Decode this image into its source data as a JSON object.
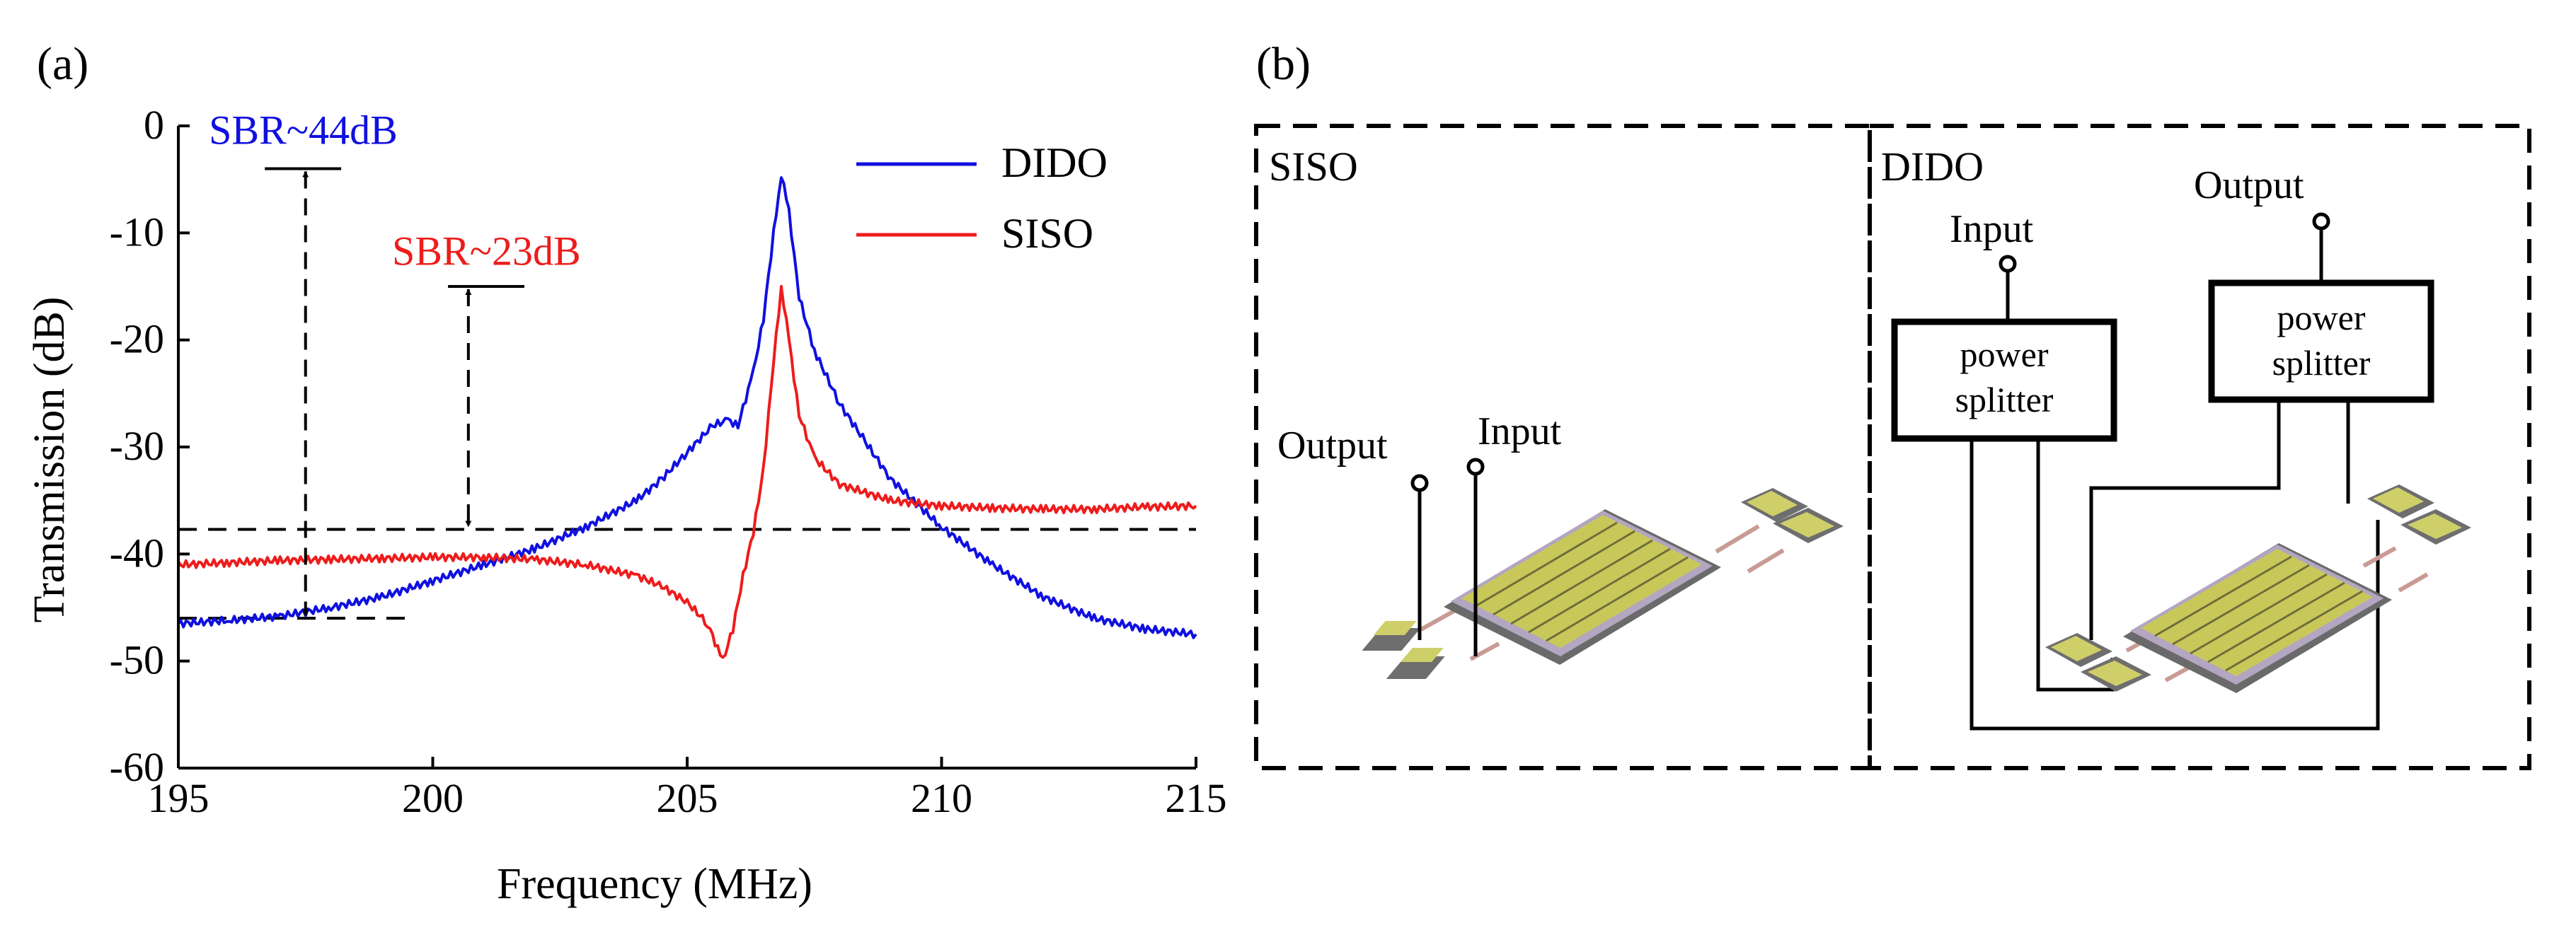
{
  "panel_a": {
    "label": "(a)",
    "annotations": {
      "sbr_dido": "SBR~44dB",
      "sbr_siso": "SBR~23dB"
    }
  },
  "panel_b": {
    "label": "(b)",
    "siso": {
      "title": "SISO",
      "output_label": "Output",
      "input_label": "Input"
    },
    "dido": {
      "title": "DIDO",
      "input_label": "Input",
      "output_label": "Output",
      "splitter_left_line1": "power",
      "splitter_left_line2": "splitter",
      "splitter_right_line1": "power",
      "splitter_right_line2": "splitter"
    }
  },
  "colors": {
    "dido": "#1010e0",
    "siso": "#ee1c1c",
    "axis": "#000000",
    "chip_pad": "#707070",
    "chip_finger": "#c8c85a",
    "chip_trace": "#c89b94"
  },
  "chart_data": {
    "type": "line",
    "title": "",
    "xlabel": "Frequency (MHz)",
    "ylabel": "Transmission (dB)",
    "xlim": [
      195,
      215
    ],
    "ylim": [
      -60,
      0
    ],
    "xticks": [
      195,
      200,
      205,
      210,
      215
    ],
    "yticks": [
      0,
      -10,
      -20,
      -30,
      -40,
      -50,
      -60
    ],
    "legend": {
      "position": "top-right",
      "entries": [
        "DIDO",
        "SISO"
      ]
    },
    "reference_levels": {
      "dido_bottom": -46,
      "siso_baseline": -37.7,
      "dido_peak": -4,
      "siso_peak": -15
    },
    "series": [
      {
        "name": "DIDO",
        "x": [
          195,
          196,
          197,
          198,
          199,
          200,
          201,
          202,
          203,
          204,
          204.5,
          205,
          205.5,
          205.8,
          206,
          206.3,
          206.5,
          206.7,
          206.85,
          207,
          207.2,
          207.5,
          208,
          208.5,
          209,
          210,
          211,
          212,
          213,
          214,
          215
        ],
        "y": [
          -46.5,
          -46.2,
          -45.8,
          -45,
          -44,
          -42.5,
          -41,
          -39.5,
          -37.5,
          -35,
          -33,
          -30.5,
          -28,
          -27.5,
          -28,
          -23,
          -18,
          -10,
          -4.5,
          -8,
          -16,
          -21,
          -26,
          -29.5,
          -33,
          -37.5,
          -41,
          -44,
          -46,
          -47,
          -47.5
        ]
      },
      {
        "name": "SISO",
        "x": [
          195,
          196,
          197,
          198,
          199,
          200,
          201,
          202,
          203,
          204,
          204.5,
          205,
          205.4,
          205.7,
          205.9,
          206.1,
          206.3,
          206.5,
          206.7,
          206.85,
          207,
          207.2,
          207.5,
          208,
          209,
          210,
          211,
          212,
          213,
          214,
          215
        ],
        "y": [
          -41,
          -40.8,
          -40.6,
          -40.5,
          -40.4,
          -40.3,
          -40.3,
          -40.5,
          -41,
          -42,
          -43,
          -44.5,
          -46.5,
          -50,
          -47,
          -42,
          -38,
          -32,
          -22,
          -15,
          -20,
          -27,
          -31,
          -33.5,
          -35,
          -35.5,
          -35.7,
          -35.8,
          -35.8,
          -35.6,
          -35.5
        ]
      }
    ]
  }
}
